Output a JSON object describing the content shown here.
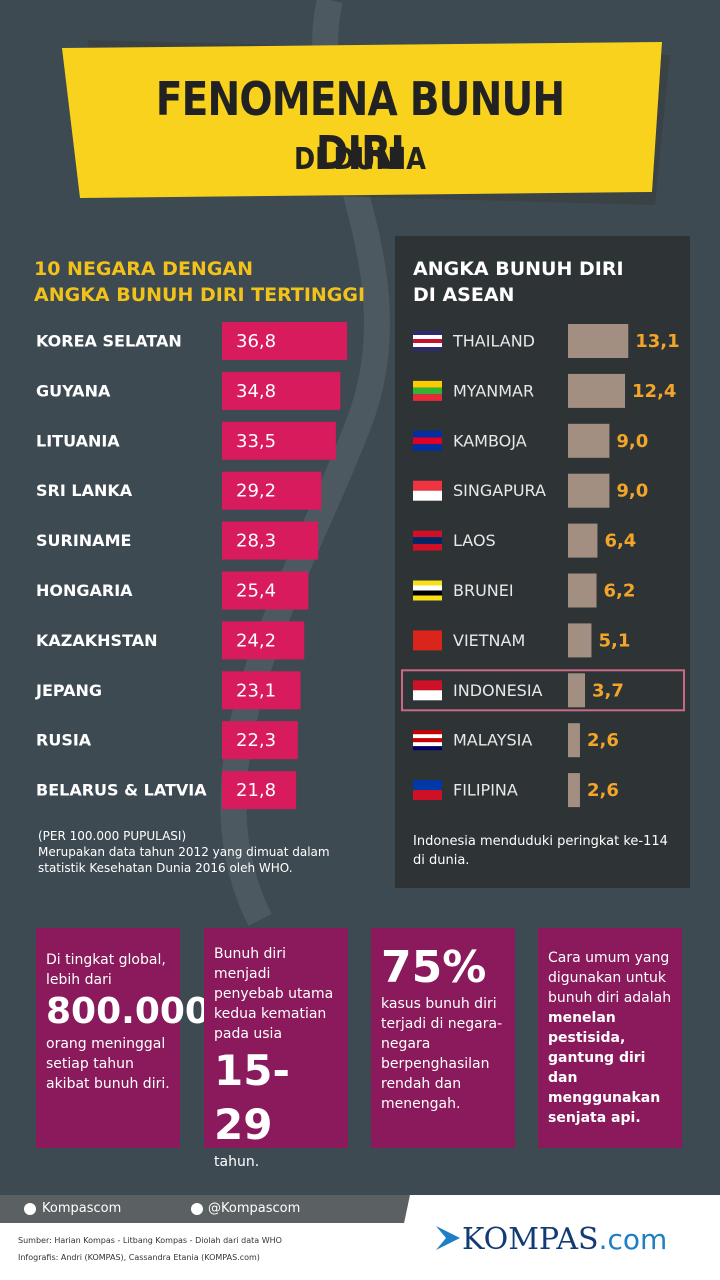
{
  "header": {
    "title": "FENOMENA BUNUH DIRI",
    "subtitle": "DI DUNIA"
  },
  "chart_data": [
    {
      "type": "bar",
      "orientation": "horizontal",
      "title": [
        "10 NEGARA DENGAN",
        "ANGKA BUNUH DIRI TERTINGGI"
      ],
      "categories": [
        "KOREA SELATAN",
        "GUYANA",
        "LITUANIA",
        "SRI LANKA",
        "SURINAME",
        "HONGARIA",
        "KAZAKHSTAN",
        "JEPANG",
        "RUSIA",
        "BELARUS & LATVIA"
      ],
      "values": [
        36.8,
        34.8,
        33.5,
        29.2,
        28.3,
        25.4,
        24.2,
        23.1,
        22.3,
        21.8
      ],
      "value_labels": [
        "36,8",
        "34,8",
        "33,5",
        "29,2",
        "28,3",
        "25,4",
        "24,2",
        "23,1",
        "22,3",
        "21,8"
      ],
      "color": "#d81b5c",
      "notes": [
        "(PER 100.000 PUPULASI)",
        "Merupakan data tahun 2012 yang dimuat dalam statistik Kesehatan Dunia 2016 oleh WHO."
      ]
    },
    {
      "type": "bar",
      "orientation": "horizontal",
      "title": [
        "ANGKA BUNUH DIRI",
        "DI ASEAN"
      ],
      "categories": [
        "THAILAND",
        "MYANMAR",
        "KAMBOJA",
        "SINGAPURA",
        "LAOS",
        "BRUNEI",
        "VIETNAM",
        "INDONESIA",
        "MALAYSIA",
        "FILIPINA"
      ],
      "values": [
        13.1,
        12.4,
        9.0,
        9.0,
        6.4,
        6.2,
        5.1,
        3.7,
        2.6,
        2.6
      ],
      "value_labels": [
        "13,1",
        "12,4",
        "9,0",
        "9,0",
        "6,4",
        "6,2",
        "5,1",
        "3,7",
        "2,6",
        "2,6"
      ],
      "color": "#a38f82",
      "notes": [
        "Indonesia menduduki peringkat ke-114 di dunia."
      ]
    }
  ],
  "boxes": [
    {
      "before": "Di tingkat global, lebih dari",
      "big": "800.000",
      "after": "orang meninggal setiap tahun akibat bunuh diri."
    },
    {
      "before": "Bunuh diri menjadi penyebab utama kedua kematian pada usia",
      "big": "15-29",
      "after": "tahun."
    },
    {
      "big": "75%",
      "after": "kasus bunuh diri terjadi di negara-negara berpenghasilan rendah dan menengah."
    },
    {
      "before": "Cara umum yang digunakan untuk bunuh diri adalah",
      "bold": "menelan pestisida, gantung diri dan menggunakan senjata api."
    }
  ],
  "footer": {
    "facebook": "Kompascom",
    "twitter": "@Kompascom",
    "source": "Sumber: Harian Kompas - Litbang Kompas - Diolah dari data WHO",
    "credits": "Infografis: Andri (KOMPAS), Cassandra Etania (KOMPAS.com)",
    "logo": "KOMPAS",
    "logo_suffix": ".com"
  }
}
